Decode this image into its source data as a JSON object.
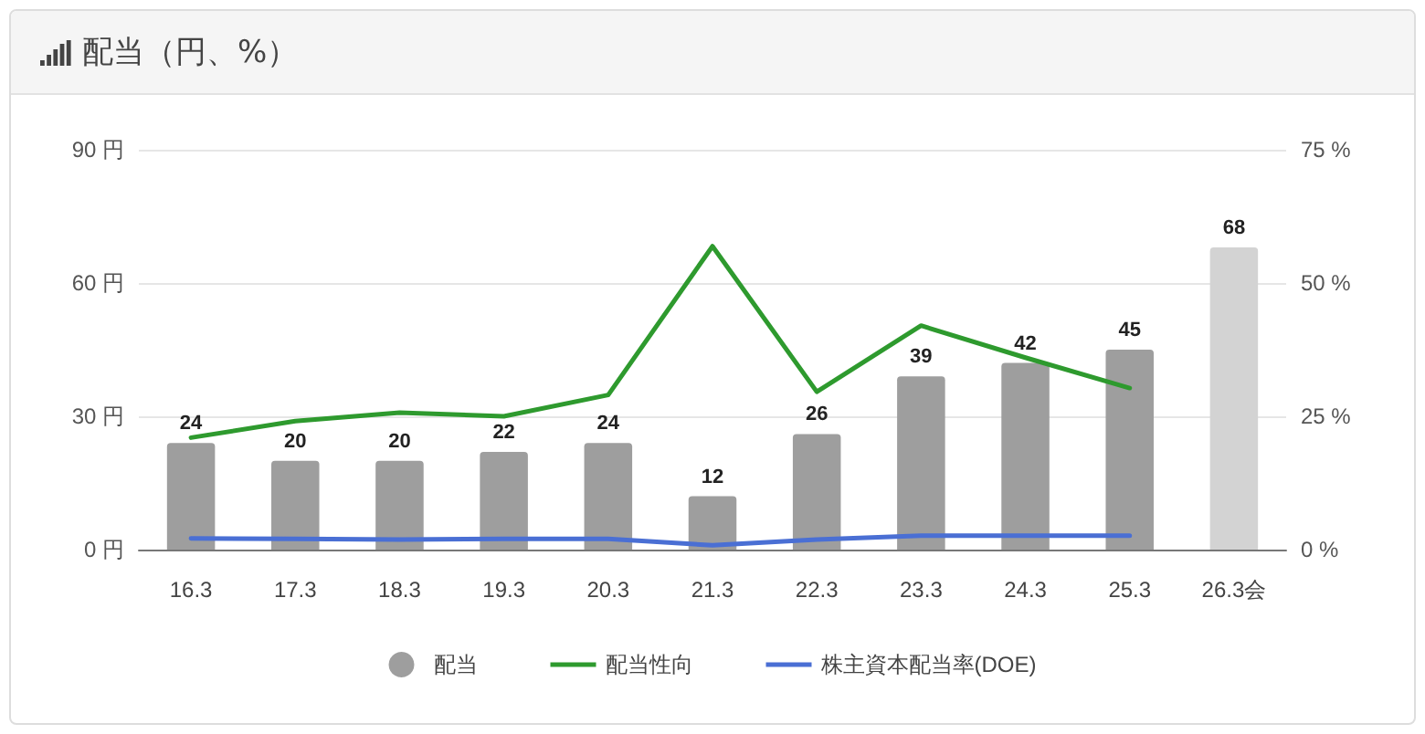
{
  "chart_data": {
    "type": "bar",
    "title": "配当（円、%）",
    "categories": [
      "16.3",
      "17.3",
      "18.3",
      "19.3",
      "20.3",
      "21.3",
      "22.3",
      "23.3",
      "24.3",
      "25.3",
      "26.3会"
    ],
    "series": [
      {
        "name": "配当",
        "colors": [
          "#9e9e9e",
          "#9e9e9e",
          "#9e9e9e",
          "#9e9e9e",
          "#9e9e9e",
          "#9e9e9e",
          "#9e9e9e",
          "#9e9e9e",
          "#9e9e9e",
          "#9e9e9e",
          "#d3d3d3"
        ],
        "color": "#9e9e9e",
        "values": [
          24,
          20,
          20,
          22,
          24,
          12,
          26,
          39,
          42,
          45,
          68
        ],
        "value_labels": [
          "24",
          "20",
          "20",
          "22",
          "24",
          "12",
          "26",
          "39",
          "42",
          "45",
          "68"
        ]
      },
      {
        "name": "配当性向",
        "type": "line",
        "axis": "y2",
        "color": "#2e9a2e",
        "values": [
          21,
          24.1,
          25.7,
          25,
          29,
          56.9,
          29.6,
          42,
          36,
          30.3,
          null
        ]
      },
      {
        "name": "株主資本配当率(DOE)",
        "type": "line",
        "axis": "y2",
        "color": "#4a6fd4",
        "values": [
          2.1,
          2.0,
          1.9,
          2.0,
          2.0,
          0.8,
          1.9,
          2.6,
          2.6,
          2.6,
          null
        ]
      }
    ],
    "ylim": [
      0,
      90
    ],
    "yticks": [
      {
        "value": 0,
        "label": "0 円"
      },
      {
        "value": 30,
        "label": "30 円"
      },
      {
        "value": 60,
        "label": "60 円"
      },
      {
        "value": 90,
        "label": "90 円"
      }
    ],
    "y2lim": [
      0,
      75
    ],
    "y2ticks": [
      {
        "value": 0,
        "label": "0 %"
      },
      {
        "value": 25,
        "label": "25 %"
      },
      {
        "value": 50,
        "label": "50 %"
      },
      {
        "value": 75,
        "label": "75 %"
      }
    ],
    "grid": "y",
    "legend": "bottom",
    "marker": "none",
    "line_style": "solid"
  }
}
